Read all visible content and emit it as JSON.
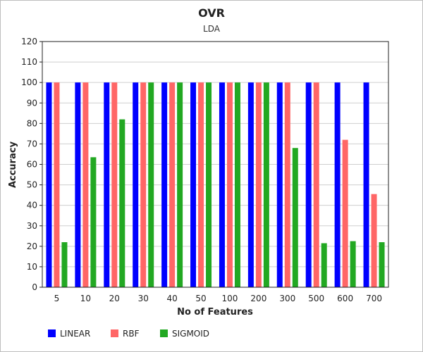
{
  "chart_data": {
    "type": "bar",
    "title": "OVR",
    "subtitle": "LDA",
    "xlabel": "No of Features",
    "ylabel": "Accuracy",
    "ylim": [
      0,
      120
    ],
    "yticks": [
      0,
      10,
      20,
      30,
      40,
      50,
      60,
      70,
      80,
      90,
      100,
      110,
      120
    ],
    "categories": [
      "5",
      "10",
      "20",
      "30",
      "40",
      "50",
      "100",
      "200",
      "300",
      "500",
      "600",
      "700"
    ],
    "grid": true,
    "legend_position": "bottom-left",
    "series": [
      {
        "name": "LINEAR",
        "color": "#0000ff",
        "values": [
          100,
          100,
          100,
          100,
          100,
          100,
          100,
          100,
          100,
          100,
          100,
          100
        ]
      },
      {
        "name": "RBF",
        "color": "#ff6666",
        "values": [
          100,
          100,
          100,
          100,
          100,
          100,
          100,
          100,
          100,
          100,
          72,
          45.5
        ]
      },
      {
        "name": "SIGMOID",
        "color": "#22a822",
        "values": [
          22,
          63.5,
          82,
          100,
          100,
          100,
          100,
          100,
          68,
          21.5,
          22.5,
          22
        ]
      }
    ]
  }
}
